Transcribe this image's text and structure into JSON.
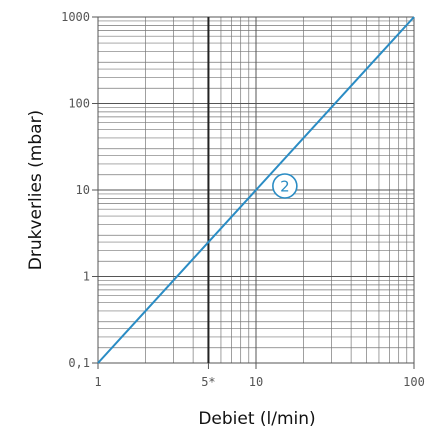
{
  "chart_data": {
    "type": "line",
    "xlabel": "Debiet (l/min)",
    "ylabel": "Drukverlies (mbar)",
    "x_scale": "log",
    "y_scale": "log",
    "xlim": [
      1,
      100
    ],
    "ylim": [
      0.1,
      1000
    ],
    "grid": true,
    "x_ticks": [
      {
        "value": 1,
        "label": "1"
      },
      {
        "value": 5,
        "label": "5*"
      },
      {
        "value": 10,
        "label": "10"
      },
      {
        "value": 100,
        "label": "100"
      }
    ],
    "y_ticks": [
      {
        "value": 0.1,
        "label": "0,1"
      },
      {
        "value": 1,
        "label": "1"
      },
      {
        "value": 10,
        "label": "10"
      },
      {
        "value": 100,
        "label": "100"
      },
      {
        "value": 1000,
        "label": "1000"
      }
    ],
    "highlight_x": 5,
    "series": [
      {
        "marker_label": "2",
        "color": "#2a8cc4",
        "x": [
          1,
          100
        ],
        "y": [
          0.1,
          1000
        ],
        "marker_at": {
          "x": 12.6,
          "y": 10
        }
      }
    ]
  }
}
